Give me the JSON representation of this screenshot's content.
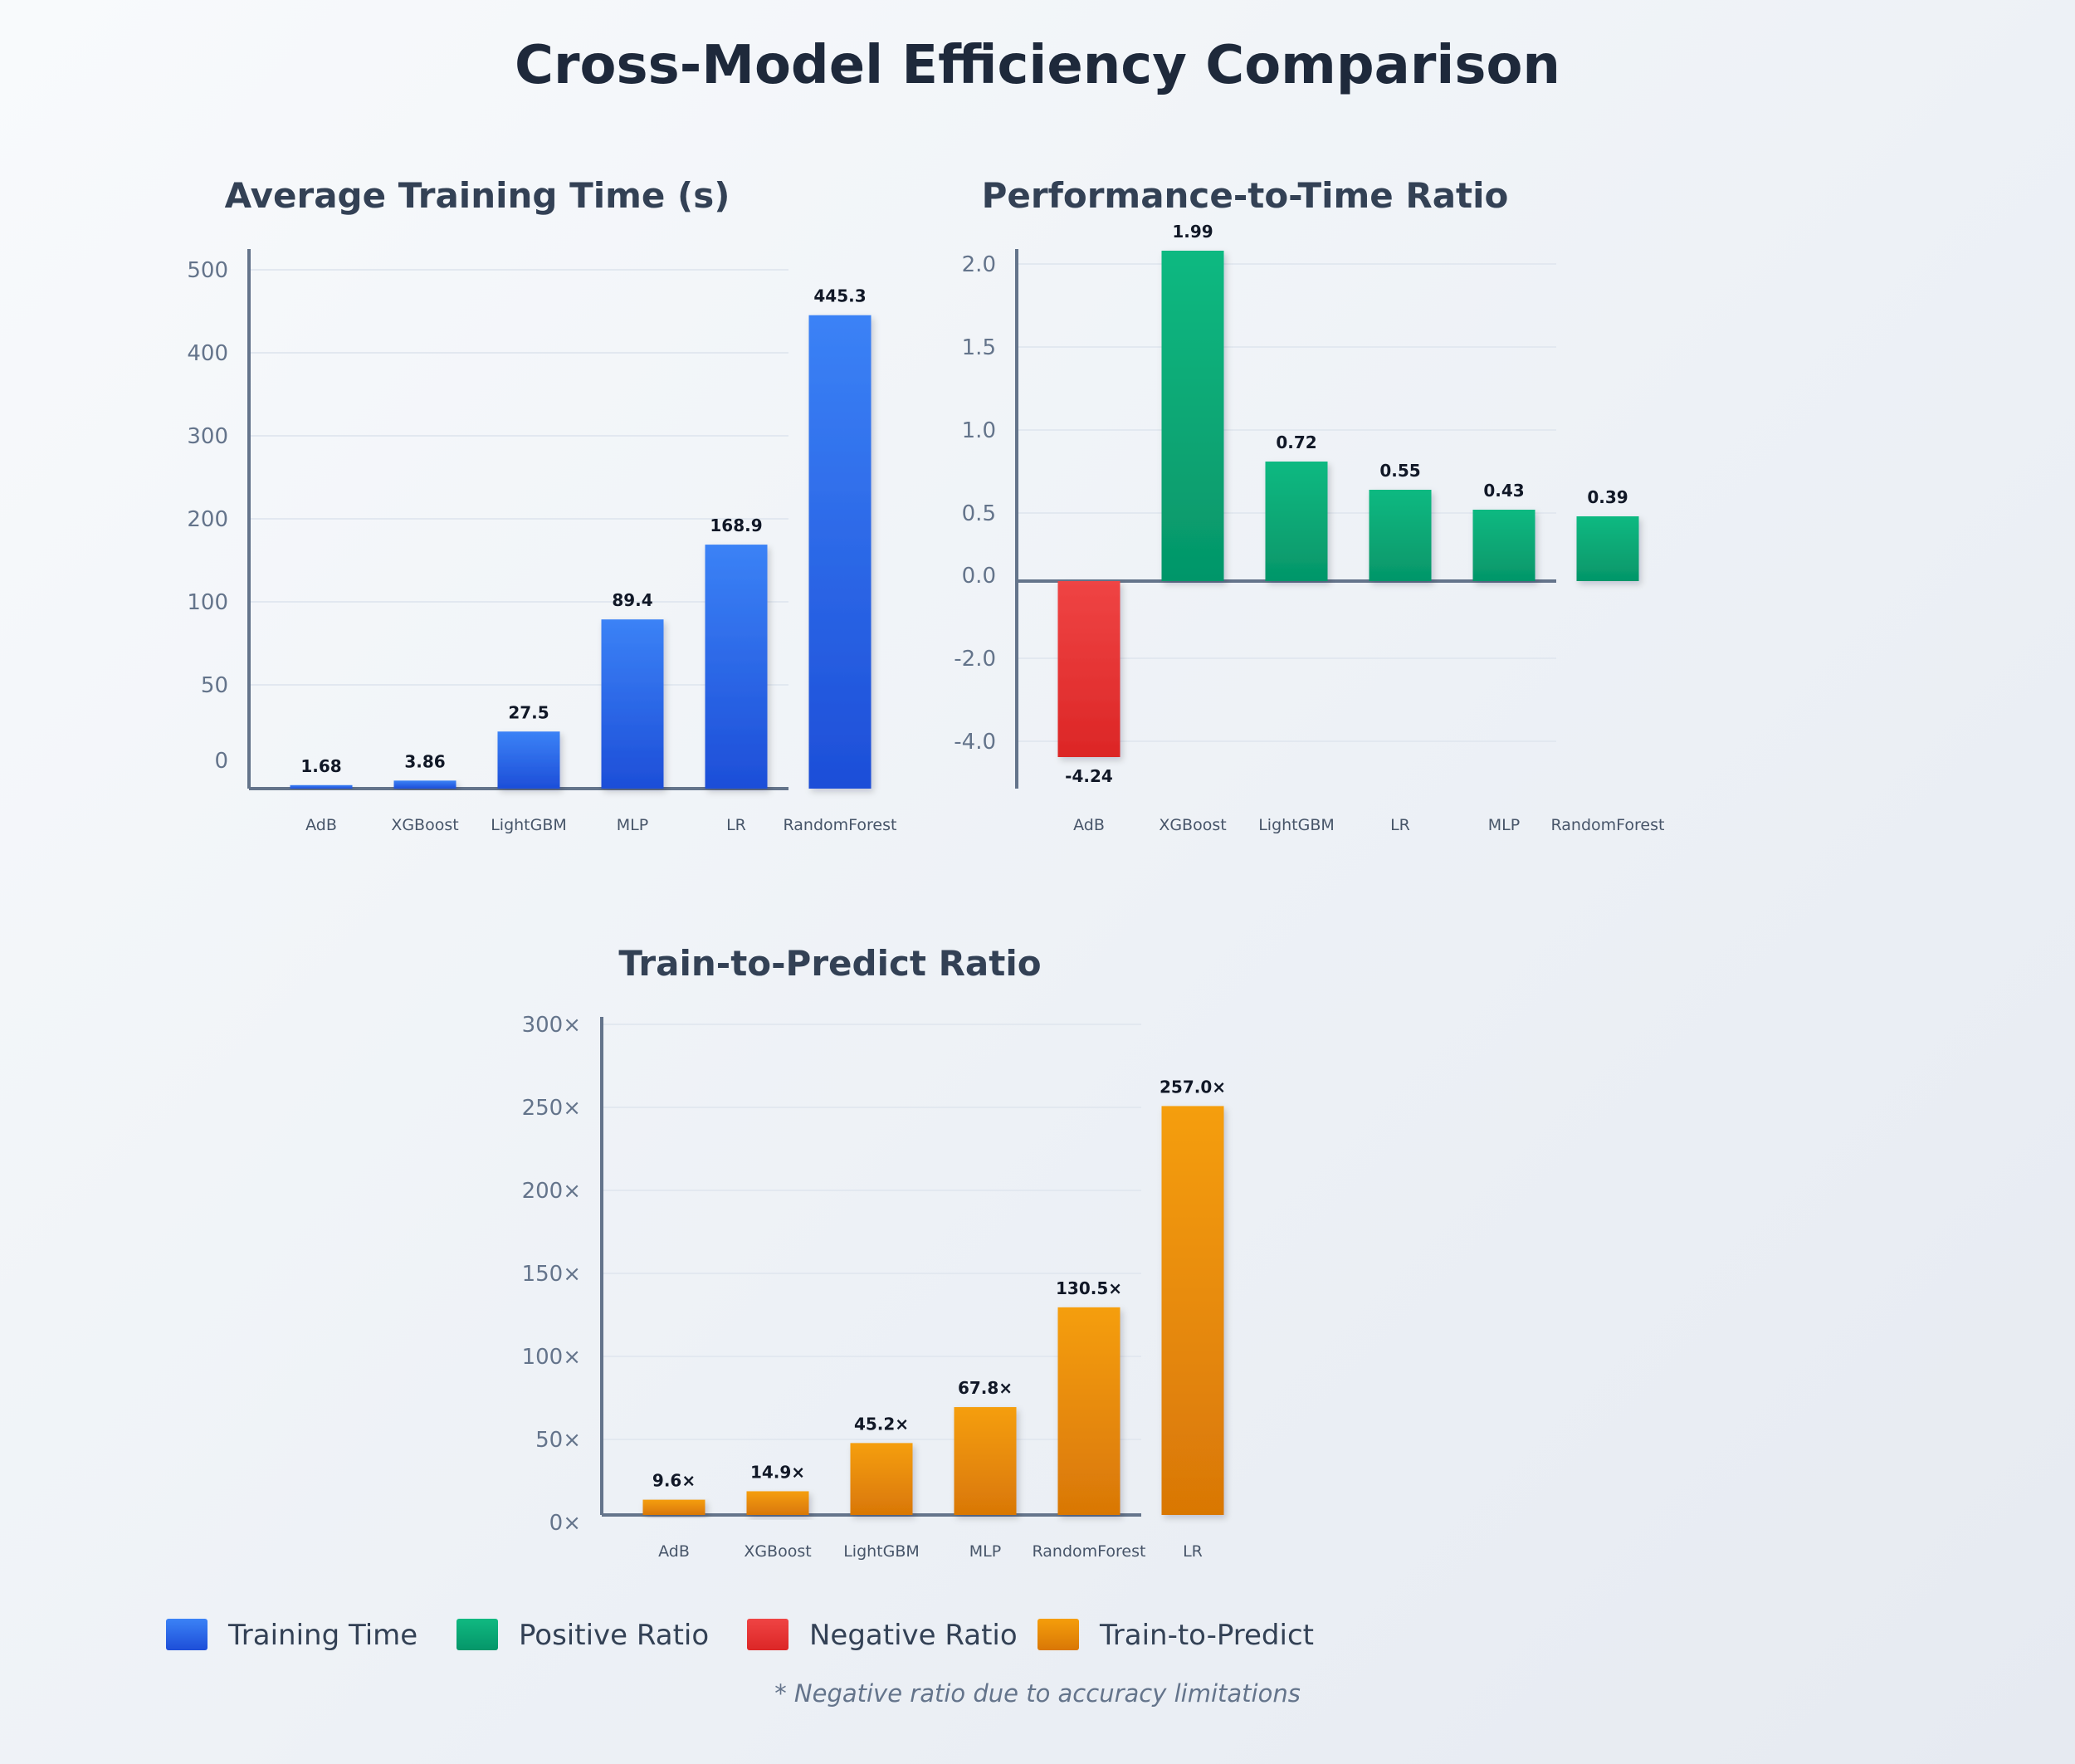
{
  "title": "Cross-Model Efficiency Comparison",
  "colors": {
    "training": "#2563eb",
    "positive": "#10b981",
    "negative": "#dc2626",
    "train_predict": "#f59e0b"
  },
  "chart_data": [
    {
      "type": "bar",
      "title": "Average Training Time (s)",
      "categories": [
        "AdB",
        "XGBoost",
        "LightGBM",
        "MLP",
        "LR",
        "RandomForest"
      ],
      "values": [
        1.68,
        3.86,
        27.5,
        89.4,
        168.9,
        445.3
      ],
      "value_labels": [
        "1.68",
        "3.86",
        "27.5",
        "89.4",
        "168.9",
        "445.3"
      ],
      "y_ticks": [
        "0",
        "50",
        "100",
        "200",
        "300",
        "400",
        "500"
      ],
      "y_scale": "broken (0–100 uses larger spacing per unit than 100–500)",
      "grid": true,
      "color_key": "training"
    },
    {
      "type": "bar",
      "title": "Performance-to-Time Ratio",
      "categories": [
        "AdB",
        "XGBoost",
        "LightGBM",
        "LR",
        "MLP",
        "RandomForest"
      ],
      "values": [
        -4.24,
        1.99,
        0.72,
        0.55,
        0.43,
        0.39
      ],
      "value_labels": [
        "-4.24",
        "1.99",
        "0.72",
        "0.55",
        "0.43",
        "0.39"
      ],
      "y_ticks": [
        "-4.0",
        "-2.0",
        "0.0",
        "0.5",
        "1.0",
        "1.5",
        "2.0"
      ],
      "y_scale": "broken (negative side compressed)",
      "grid": true,
      "color_key_positive": "positive",
      "color_key_negative": "negative"
    },
    {
      "type": "bar",
      "title": "Train-to-Predict Ratio",
      "categories": [
        "AdB",
        "XGBoost",
        "LightGBM",
        "MLP",
        "RandomForest",
        "LR"
      ],
      "values": [
        9.6,
        14.9,
        45.2,
        67.8,
        130.5,
        257.0
      ],
      "value_labels": [
        "9.6×",
        "14.9×",
        "45.2×",
        "67.8×",
        "130.5×",
        "257.0×"
      ],
      "y_ticks": [
        "0×",
        "50×",
        "100×",
        "150×",
        "200×",
        "250×",
        "300×"
      ],
      "grid": true,
      "color_key": "train_predict"
    }
  ],
  "legend": [
    {
      "label": "Training Time",
      "color_key": "training"
    },
    {
      "label": "Positive Ratio",
      "color_key": "positive"
    },
    {
      "label": "Negative Ratio",
      "color_key": "negative"
    },
    {
      "label": "Train-to-Predict",
      "color_key": "train_predict"
    }
  ],
  "footnote": "* Negative ratio due to accuracy limitations"
}
